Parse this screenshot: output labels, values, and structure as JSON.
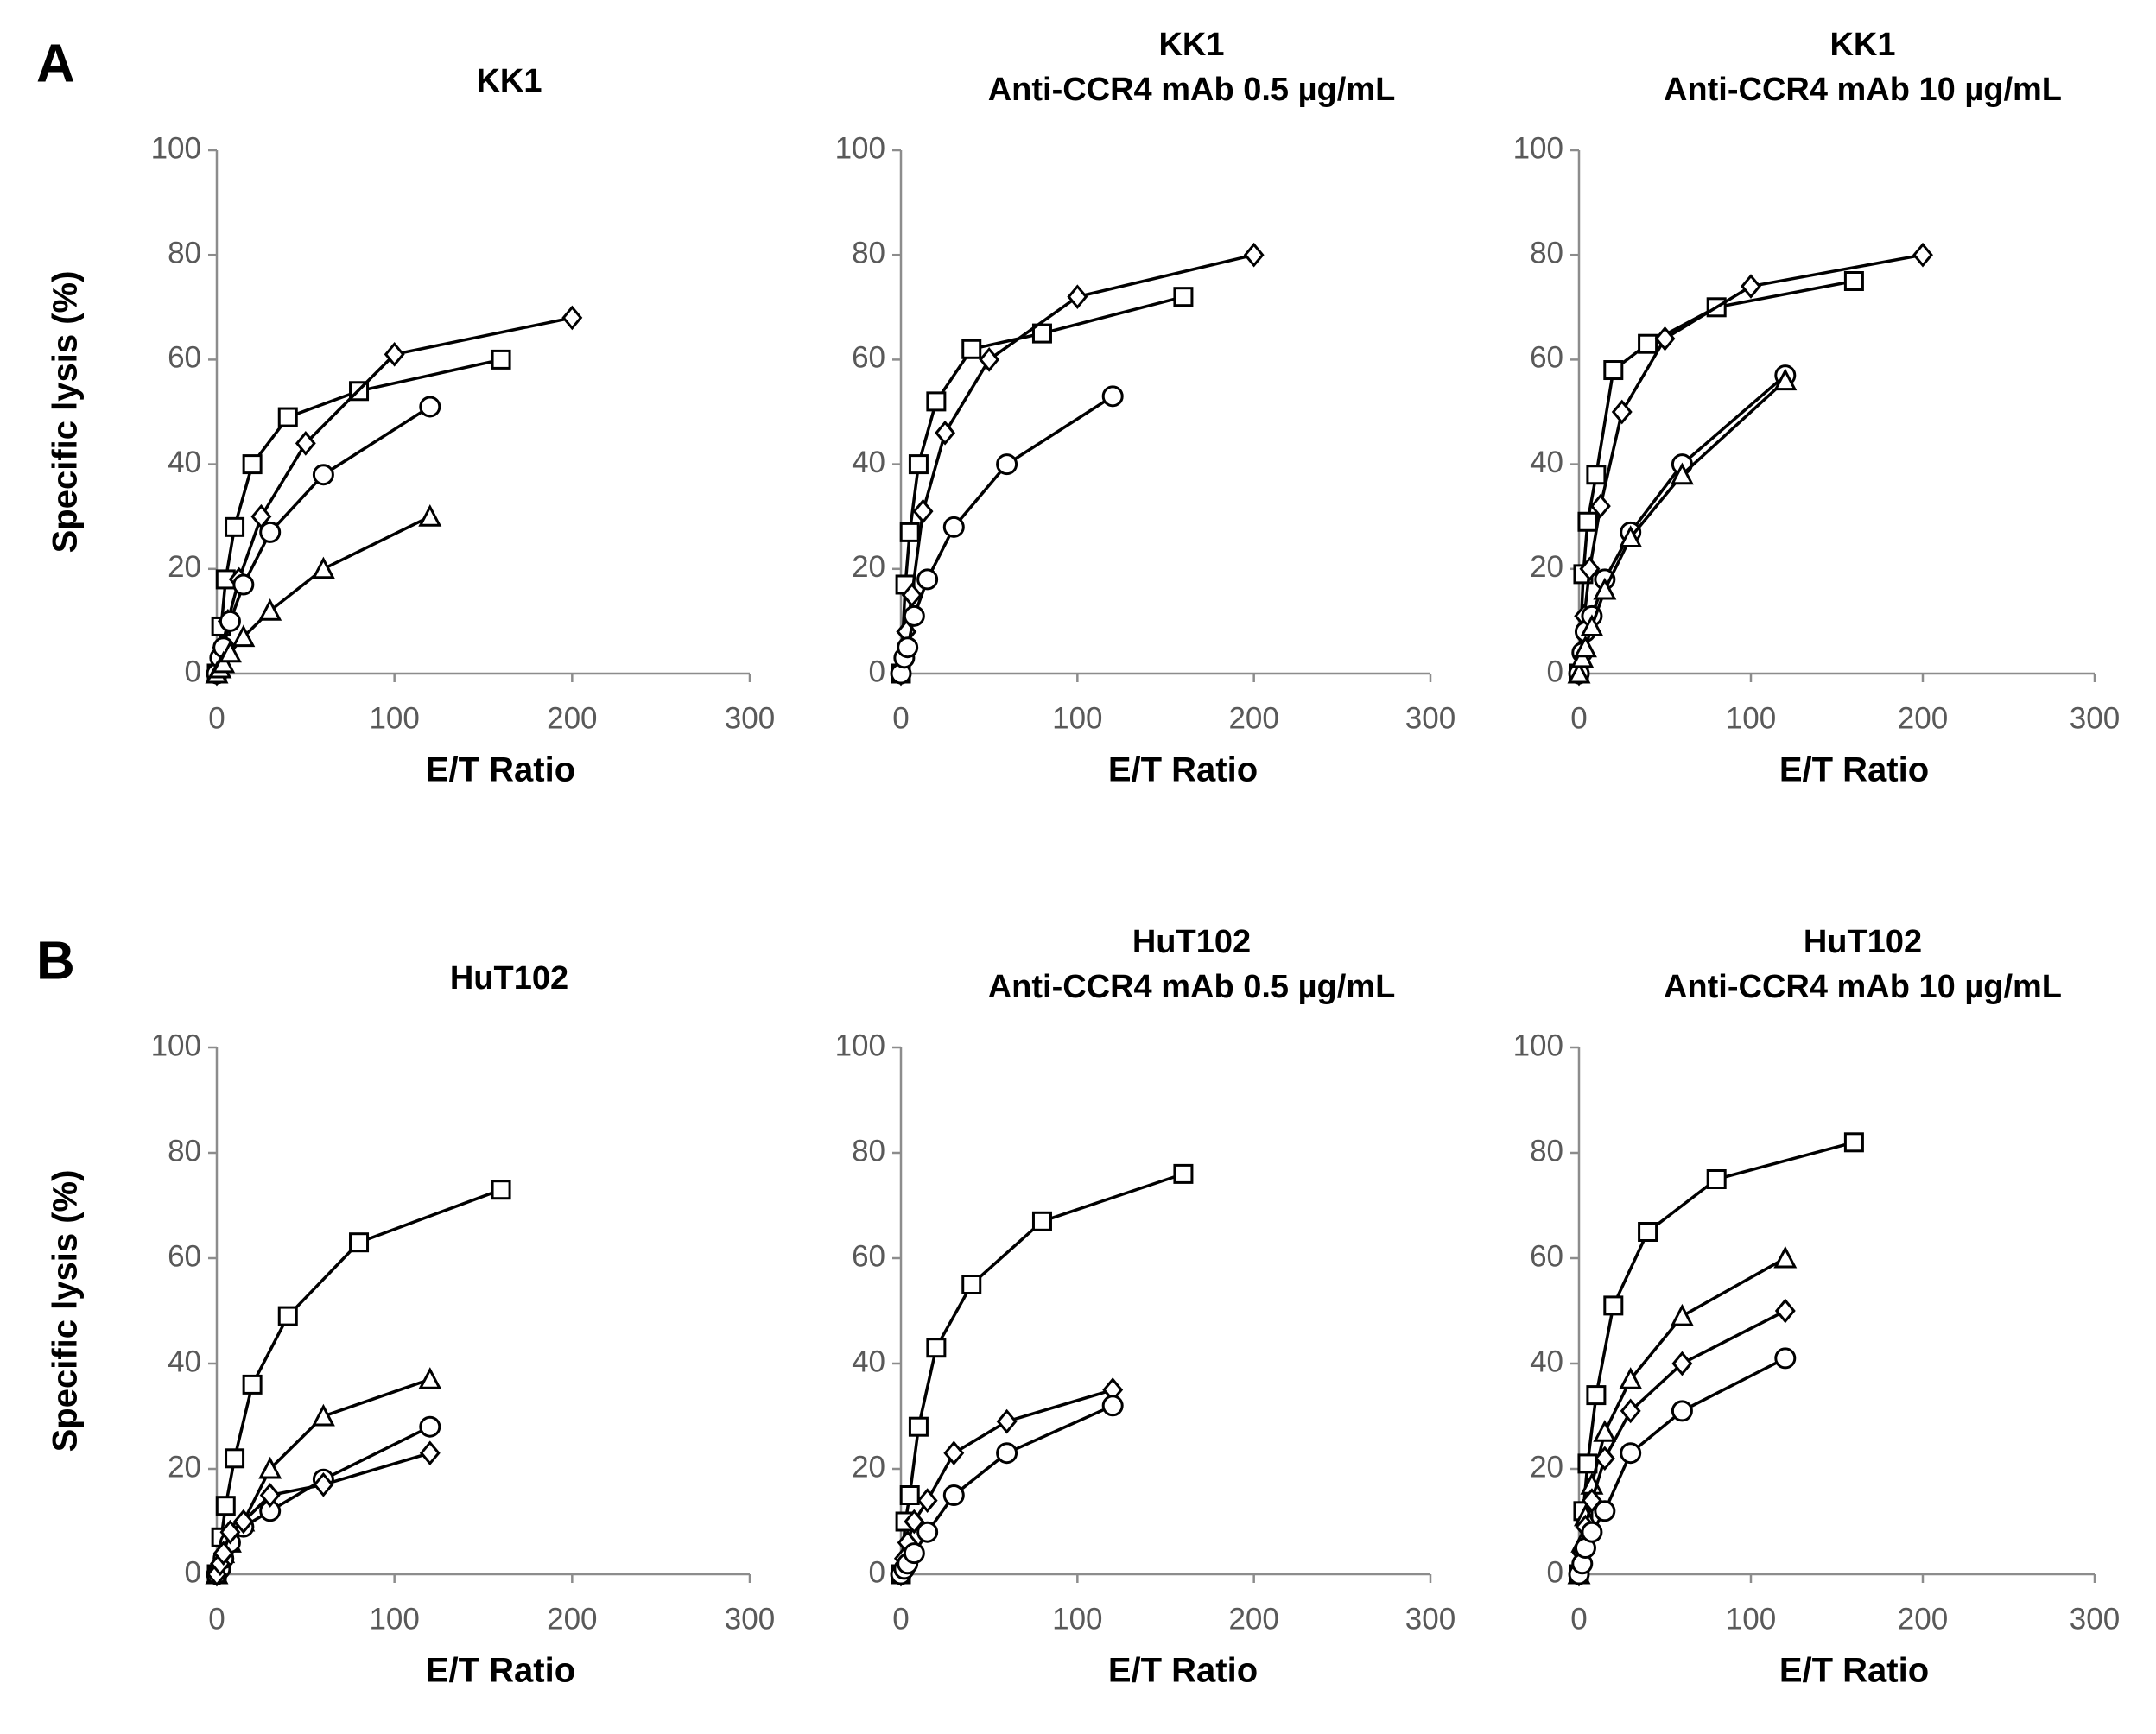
{
  "chart_data": [
    {
      "type": "line",
      "panel_label": "A",
      "title": "KK1",
      "xlabel": "E/T Ratio",
      "ylabel": "Specific lysis (%)",
      "xlim": [
        0,
        300
      ],
      "xticks": [
        0,
        100,
        200,
        300
      ],
      "ylim": [
        0,
        100
      ],
      "yticks": [
        0,
        20,
        40,
        60,
        80,
        100
      ],
      "series": [
        {
          "marker": "square",
          "color": "#000000",
          "x": [
            0,
            2.5,
            5,
            10,
            20,
            40,
            80,
            160
          ],
          "values": [
            0,
            9,
            18,
            28,
            40,
            49,
            54,
            60
          ]
        },
        {
          "marker": "diamond",
          "color": "#000000",
          "x": [
            0,
            3.1,
            6.25,
            12.5,
            25,
            50,
            100,
            200
          ],
          "values": [
            0,
            5,
            10,
            18,
            30,
            44,
            61,
            68
          ]
        },
        {
          "marker": "circle",
          "color": "#000000",
          "x": [
            0,
            1.9,
            3.75,
            7.5,
            15,
            30,
            60,
            120
          ],
          "values": [
            0,
            3,
            5,
            10,
            17,
            27,
            38,
            51
          ]
        },
        {
          "marker": "triangle",
          "color": "#000000",
          "x": [
            0,
            1.9,
            3.75,
            7.5,
            15,
            30,
            60,
            120
          ],
          "values": [
            0,
            1,
            2,
            4,
            7,
            12,
            20,
            30
          ]
        }
      ]
    },
    {
      "type": "line",
      "title": "KK1",
      "subtitle": "Anti-CCR4 mAb 0.5 µg/mL",
      "xlabel": "E/T Ratio",
      "xlim": [
        0,
        300
      ],
      "xticks": [
        0,
        100,
        200,
        300
      ],
      "ylim": [
        0,
        100
      ],
      "yticks": [
        0,
        20,
        40,
        60,
        80,
        100
      ],
      "series": [
        {
          "marker": "square",
          "color": "#000000",
          "x": [
            0,
            2.5,
            5,
            10,
            20,
            40,
            80,
            160
          ],
          "values": [
            0,
            17,
            27,
            40,
            52,
            62,
            65,
            72
          ]
        },
        {
          "marker": "diamond",
          "color": "#000000",
          "x": [
            0,
            3.1,
            6.25,
            12.5,
            25,
            50,
            100,
            200
          ],
          "values": [
            0,
            8,
            15,
            31,
            46,
            60,
            72,
            80
          ]
        },
        {
          "marker": "circle",
          "color": "#000000",
          "x": [
            0,
            1.9,
            3.75,
            7.5,
            15,
            30,
            60,
            120
          ],
          "values": [
            0,
            3,
            5,
            11,
            18,
            28,
            40,
            53
          ]
        }
      ]
    },
    {
      "type": "line",
      "title": "KK1",
      "subtitle": "Anti-CCR4 mAb 10 µg/mL",
      "xlabel": "E/T Ratio",
      "xlim": [
        0,
        300
      ],
      "xticks": [
        0,
        100,
        200,
        300
      ],
      "ylim": [
        0,
        100
      ],
      "yticks": [
        0,
        20,
        40,
        60,
        80,
        100
      ],
      "series": [
        {
          "marker": "square",
          "color": "#000000",
          "x": [
            0,
            2.5,
            5,
            10,
            20,
            40,
            80,
            160
          ],
          "values": [
            0,
            19,
            29,
            38,
            58,
            63,
            70,
            75
          ]
        },
        {
          "marker": "diamond",
          "color": "#000000",
          "x": [
            0,
            3.1,
            6.25,
            12.5,
            25,
            50,
            100,
            200
          ],
          "values": [
            0,
            11,
            20,
            32,
            50,
            64,
            74,
            80
          ]
        },
        {
          "marker": "circle",
          "color": "#000000",
          "x": [
            0,
            1.9,
            3.75,
            7.5,
            15,
            30,
            60,
            120
          ],
          "values": [
            0,
            4,
            8,
            11,
            18,
            27,
            40,
            57
          ]
        },
        {
          "marker": "triangle",
          "color": "#000000",
          "x": [
            0,
            1.9,
            3.75,
            7.5,
            15,
            30,
            60,
            120
          ],
          "values": [
            0,
            3,
            5,
            9,
            16,
            26,
            38,
            56
          ]
        }
      ]
    },
    {
      "type": "line",
      "panel_label": "B",
      "title": "HuT102",
      "xlabel": "E/T Ratio",
      "ylabel": "Specific lysis (%)",
      "xlim": [
        0,
        300
      ],
      "xticks": [
        0,
        100,
        200,
        300
      ],
      "ylim": [
        0,
        100
      ],
      "yticks": [
        0,
        20,
        40,
        60,
        80,
        100
      ],
      "series": [
        {
          "marker": "square",
          "color": "#000000",
          "x": [
            0,
            2.5,
            5,
            10,
            20,
            40,
            80,
            160
          ],
          "values": [
            0,
            7,
            13,
            22,
            36,
            49,
            63,
            73
          ]
        },
        {
          "marker": "triangle",
          "color": "#000000",
          "x": [
            0,
            1.9,
            3.75,
            7.5,
            15,
            30,
            60,
            120
          ],
          "values": [
            0,
            2,
            4,
            6,
            10,
            20,
            30,
            37
          ]
        },
        {
          "marker": "circle",
          "color": "#000000",
          "x": [
            0,
            1.9,
            3.75,
            7.5,
            15,
            30,
            60,
            120
          ],
          "values": [
            0,
            1,
            3,
            6,
            9,
            12,
            18,
            28
          ]
        },
        {
          "marker": "diamond",
          "color": "#000000",
          "x": [
            0,
            1.9,
            3.75,
            7.5,
            15,
            30,
            60,
            120
          ],
          "values": [
            0,
            2,
            4,
            8,
            10,
            15,
            17,
            23
          ]
        }
      ]
    },
    {
      "type": "line",
      "title": "HuT102",
      "subtitle": "Anti-CCR4 mAb 0.5 µg/mL",
      "xlabel": "E/T Ratio",
      "xlim": [
        0,
        300
      ],
      "xticks": [
        0,
        100,
        200,
        300
      ],
      "ylim": [
        0,
        100
      ],
      "yticks": [
        0,
        20,
        40,
        60,
        80,
        100
      ],
      "series": [
        {
          "marker": "square",
          "color": "#000000",
          "x": [
            0,
            2.5,
            5,
            10,
            20,
            40,
            80,
            160
          ],
          "values": [
            0,
            10,
            15,
            28,
            43,
            55,
            67,
            76
          ]
        },
        {
          "marker": "diamond",
          "color": "#000000",
          "x": [
            0,
            1.9,
            3.75,
            7.5,
            15,
            30,
            60,
            120
          ],
          "values": [
            0,
            3,
            6,
            10,
            14,
            23,
            29,
            35
          ]
        },
        {
          "marker": "circle",
          "color": "#000000",
          "x": [
            0,
            1.9,
            3.75,
            7.5,
            15,
            30,
            60,
            120
          ],
          "values": [
            0,
            1,
            2,
            4,
            8,
            15,
            23,
            32
          ]
        }
      ]
    },
    {
      "type": "line",
      "title": "HuT102",
      "subtitle": "Anti-CCR4 mAb 10 µg/mL",
      "xlabel": "E/T Ratio",
      "xlim": [
        0,
        300
      ],
      "xticks": [
        0,
        100,
        200,
        300
      ],
      "ylim": [
        0,
        100
      ],
      "yticks": [
        0,
        20,
        40,
        60,
        80,
        100
      ],
      "series": [
        {
          "marker": "square",
          "color": "#000000",
          "x": [
            0,
            2.5,
            5,
            10,
            20,
            40,
            80,
            160
          ],
          "values": [
            0,
            12,
            21,
            34,
            51,
            65,
            75,
            82
          ]
        },
        {
          "marker": "triangle",
          "color": "#000000",
          "x": [
            0,
            1.9,
            3.75,
            7.5,
            15,
            30,
            60,
            120
          ],
          "values": [
            0,
            6,
            11,
            17,
            27,
            37,
            49,
            60
          ]
        },
        {
          "marker": "diamond",
          "color": "#000000",
          "x": [
            0,
            1.9,
            3.75,
            7.5,
            15,
            30,
            60,
            120
          ],
          "values": [
            0,
            4,
            9,
            14,
            22,
            31,
            40,
            50
          ]
        },
        {
          "marker": "circle",
          "color": "#000000",
          "x": [
            0,
            1.9,
            3.75,
            7.5,
            15,
            30,
            60,
            120
          ],
          "values": [
            0,
            2,
            5,
            8,
            12,
            23,
            31,
            41
          ]
        }
      ]
    }
  ]
}
